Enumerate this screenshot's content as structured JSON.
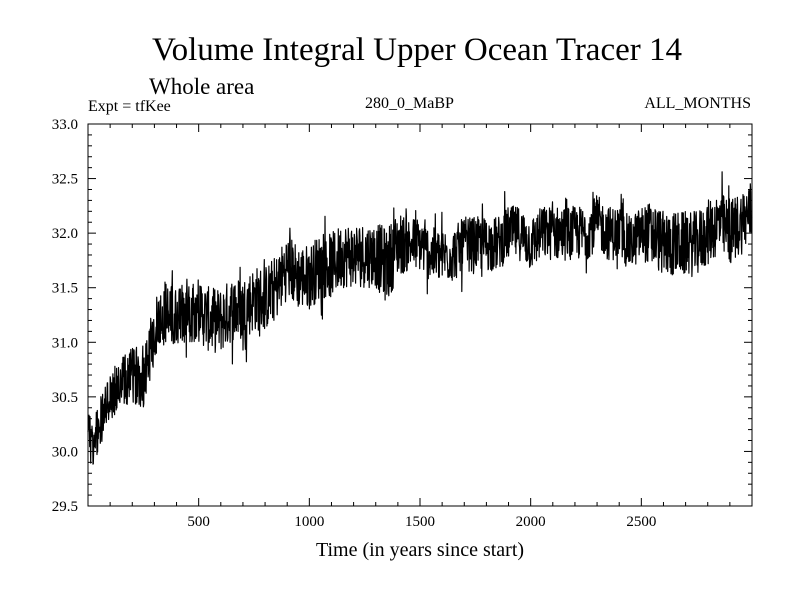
{
  "chart_data": {
    "type": "line",
    "title": "Volume Integral Upper Ocean Tracer 14",
    "subtitle": "Whole area",
    "annotations": {
      "left": "Expt = tfKee",
      "center": "280_0_MaBP",
      "right": "ALL_MONTHS"
    },
    "xlabel": "Time (in years since start)",
    "ylabel": "",
    "xlim": [
      0,
      3000
    ],
    "ylim": [
      29.5,
      33.0
    ],
    "x_ticks": [
      500,
      1000,
      1500,
      2000,
      2500
    ],
    "x_tick_labels": [
      "500",
      "1000",
      "1500",
      "2000",
      "2500"
    ],
    "y_ticks": [
      29.5,
      30.0,
      30.5,
      31.0,
      31.5,
      32.0,
      32.5,
      33.0
    ],
    "y_tick_labels": [
      "29.5",
      "30.0",
      "30.5",
      "31.0",
      "31.5",
      "32.0",
      "32.5",
      "33.0"
    ],
    "grid": false,
    "series": [
      {
        "line_color": "#000000",
        "x": [
          0,
          20,
          40,
          60,
          80,
          100,
          150,
          200,
          250,
          300,
          350,
          400,
          450,
          500,
          550,
          600,
          650,
          700,
          750,
          800,
          850,
          900,
          950,
          1000,
          1050,
          1100,
          1150,
          1200,
          1250,
          1300,
          1350,
          1400,
          1450,
          1500,
          1550,
          1600,
          1650,
          1700,
          1750,
          1800,
          1850,
          1900,
          1950,
          2000,
          2050,
          2100,
          2150,
          2200,
          2250,
          2300,
          2350,
          2400,
          2450,
          2500,
          2550,
          2600,
          2650,
          2700,
          2750,
          2800,
          2850,
          2900,
          2950,
          3000
        ],
        "values": [
          30.3,
          30.0,
          30.2,
          30.3,
          30.4,
          30.5,
          30.6,
          30.7,
          30.7,
          31.1,
          31.3,
          31.2,
          31.3,
          31.3,
          31.2,
          31.2,
          31.3,
          31.3,
          31.4,
          31.4,
          31.5,
          31.7,
          31.6,
          31.6,
          31.7,
          31.7,
          31.8,
          31.8,
          31.8,
          31.8,
          31.7,
          31.9,
          31.9,
          31.9,
          31.8,
          31.8,
          31.8,
          31.9,
          31.9,
          31.9,
          31.9,
          32.0,
          32.0,
          31.9,
          32.0,
          32.0,
          32.0,
          32.0,
          32.0,
          32.1,
          32.0,
          32.0,
          31.9,
          32.0,
          32.0,
          31.9,
          31.9,
          31.9,
          31.9,
          32.0,
          32.1,
          32.0,
          32.1,
          32.2
        ],
        "noise_amplitude": [
          0.2,
          0.25,
          0.25,
          0.25,
          0.25,
          0.25,
          0.25,
          0.25,
          0.3,
          0.3,
          0.3,
          0.3,
          0.3,
          0.3,
          0.3,
          0.3,
          0.3,
          0.3,
          0.3,
          0.3,
          0.3,
          0.3,
          0.3,
          0.3,
          0.3,
          0.3,
          0.3,
          0.3,
          0.3,
          0.3,
          0.35,
          0.3,
          0.25,
          0.25,
          0.25,
          0.25,
          0.25,
          0.25,
          0.25,
          0.25,
          0.25,
          0.25,
          0.25,
          0.25,
          0.25,
          0.25,
          0.25,
          0.25,
          0.25,
          0.25,
          0.25,
          0.25,
          0.25,
          0.25,
          0.3,
          0.3,
          0.3,
          0.3,
          0.3,
          0.3,
          0.3,
          0.3,
          0.3,
          0.3
        ]
      }
    ]
  }
}
